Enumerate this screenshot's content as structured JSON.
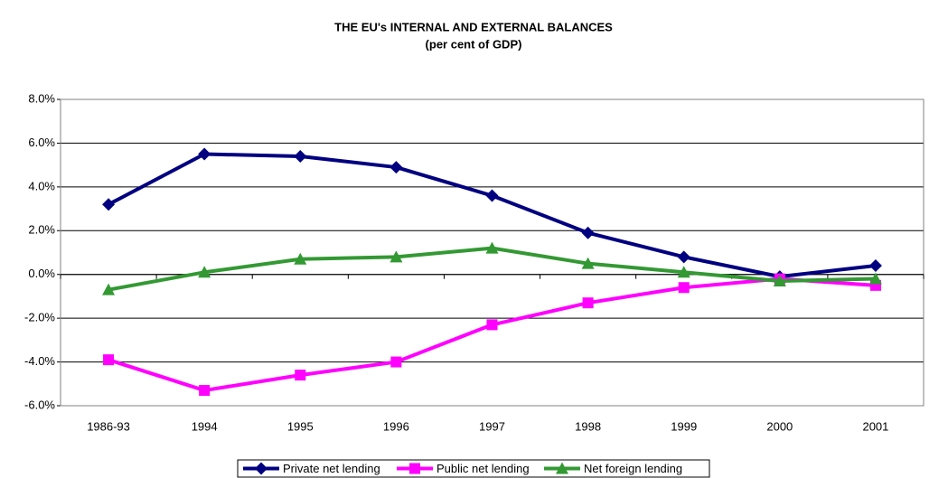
{
  "chart_data": {
    "type": "line",
    "title": "THE EU's INTERNAL AND EXTERNAL BALANCES",
    "subtitle": "(per cent of GDP)",
    "categories": [
      "1986-93",
      "1994",
      "1995",
      "1996",
      "1997",
      "1998",
      "1999",
      "2000",
      "2001"
    ],
    "series": [
      {
        "name": "Private net lending",
        "color": "#000080",
        "marker": "diamond",
        "values": [
          3.2,
          5.5,
          5.4,
          4.9,
          3.6,
          1.9,
          0.8,
          -0.1,
          0.4
        ]
      },
      {
        "name": "Public net lending",
        "color": "#ff00ff",
        "marker": "square",
        "values": [
          -3.9,
          -5.3,
          -4.6,
          -4.0,
          -2.3,
          -1.3,
          -0.6,
          -0.2,
          -0.5
        ]
      },
      {
        "name": "Net foreign lending",
        "color": "#339933",
        "marker": "triangle",
        "values": [
          -0.7,
          0.1,
          0.7,
          0.8,
          1.2,
          0.5,
          0.1,
          -0.3,
          -0.2
        ]
      }
    ],
    "ylim": [
      -6,
      8
    ],
    "yticks": [
      {
        "value": -6,
        "label": "-6.0%"
      },
      {
        "value": -4,
        "label": "-4.0%"
      },
      {
        "value": -2,
        "label": "-2.0%"
      },
      {
        "value": 0,
        "label": "0.0%"
      },
      {
        "value": 2,
        "label": "2.0%"
      },
      {
        "value": 4,
        "label": "4.0%"
      },
      {
        "value": 6,
        "label": "6.0%"
      },
      {
        "value": 8,
        "label": "8.0%"
      }
    ],
    "grid": true,
    "legend": "bottom"
  }
}
